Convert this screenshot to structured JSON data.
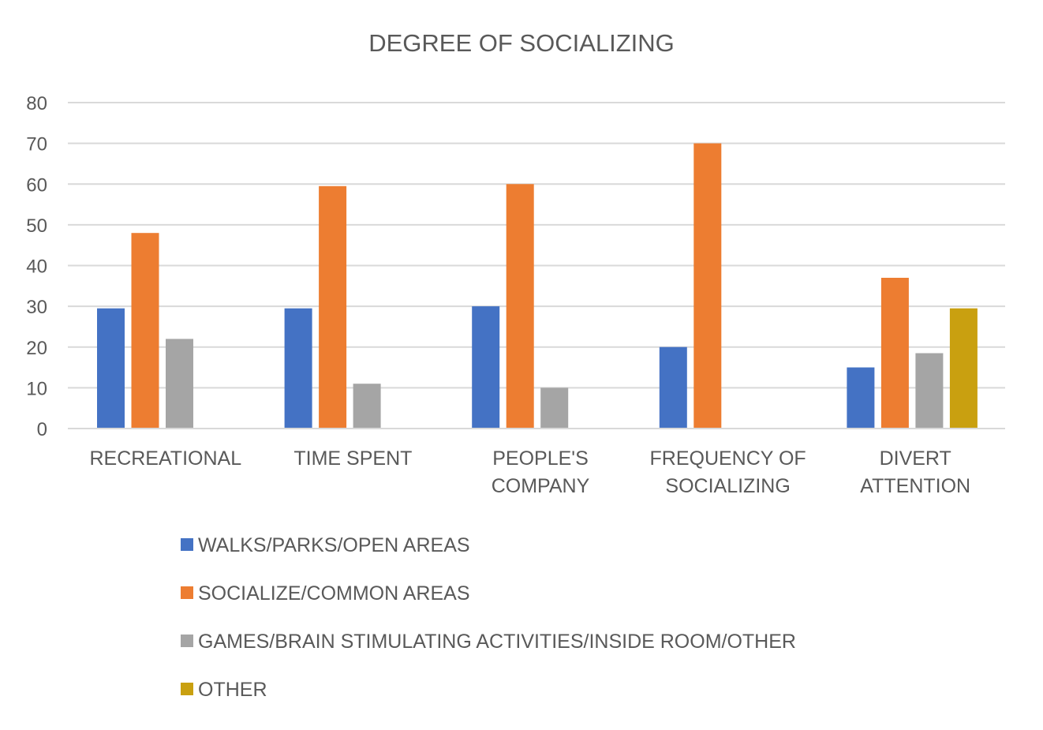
{
  "chart_data": {
    "type": "bar",
    "title": "DEGREE OF SOCIALIZING",
    "xlabel": "",
    "ylabel": "",
    "ylim": [
      0,
      80
    ],
    "y_ticks": [
      0,
      10,
      20,
      30,
      40,
      50,
      60,
      70,
      80
    ],
    "grid": true,
    "legend_position": "bottom",
    "categories": [
      [
        "RECREATIONAL"
      ],
      [
        "TIME SPENT"
      ],
      [
        "PEOPLE'S",
        "COMPANY"
      ],
      [
        "FREQUENCY OF",
        "SOCIALIZING"
      ],
      [
        "DIVERT",
        "ATTENTION"
      ]
    ],
    "series": [
      {
        "name": "WALKS/PARKS/OPEN AREAS",
        "color": "#4472C4",
        "values": [
          29.5,
          29.5,
          30,
          20,
          15
        ]
      },
      {
        "name": "SOCIALIZE/COMMON AREAS",
        "color": "#ED7D31",
        "values": [
          48,
          59.5,
          60,
          70,
          37
        ]
      },
      {
        "name": "GAMES/BRAIN STIMULATING ACTIVITIES/INSIDE ROOM/OTHER",
        "color": "#A5A5A5",
        "values": [
          22,
          11,
          10,
          0,
          18.5
        ]
      },
      {
        "name": "OTHER",
        "color": "#C9A010",
        "values": [
          0,
          0,
          0,
          0,
          29.5
        ]
      }
    ]
  }
}
